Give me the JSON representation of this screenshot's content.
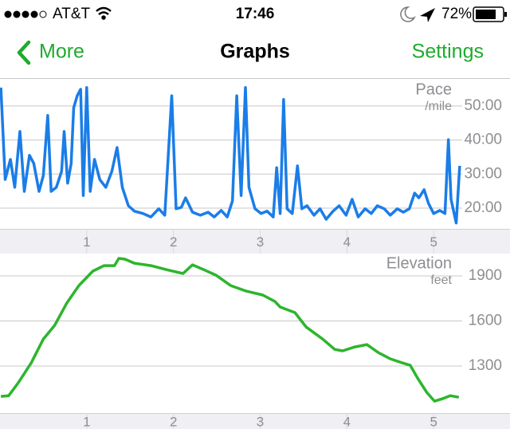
{
  "status_bar": {
    "carrier": "AT&T",
    "time": "17:46",
    "battery": "72%"
  },
  "nav": {
    "back": "More",
    "title": "Graphs",
    "action": "Settings"
  },
  "charts": [
    {
      "type": "line",
      "title": "Pace",
      "unit": "/mile",
      "color": "#1a7de8",
      "x": [
        0.01,
        0.06,
        0.12,
        0.17,
        0.23,
        0.28,
        0.34,
        0.39,
        0.45,
        0.5,
        0.55,
        0.59,
        0.65,
        0.71,
        0.74,
        0.78,
        0.82,
        0.85,
        0.89,
        0.93,
        0.96,
        1.0,
        1.04,
        1.09,
        1.15,
        1.22,
        1.29,
        1.35,
        1.41,
        1.48,
        1.55,
        1.65,
        1.74,
        1.83,
        1.9,
        1.98,
        2.03,
        2.09,
        2.14,
        2.22,
        2.31,
        2.4,
        2.47,
        2.55,
        2.62,
        2.68,
        2.73,
        2.78,
        2.83,
        2.87,
        2.94,
        3.01,
        3.08,
        3.15,
        3.19,
        3.23,
        3.27,
        3.31,
        3.37,
        3.43,
        3.48,
        3.54,
        3.62,
        3.69,
        3.76,
        3.84,
        3.91,
        3.99,
        4.06,
        4.13,
        4.21,
        4.28,
        4.35,
        4.43,
        4.5,
        4.58,
        4.65,
        4.72,
        4.78,
        4.83,
        4.89,
        4.94,
        5.0,
        5.07,
        5.13,
        5.17,
        5.2,
        5.26,
        5.3
      ],
      "values": [
        55.4,
        28.4,
        34.3,
        26.1,
        42.5,
        24.9,
        35.5,
        33.1,
        24.9,
        29.6,
        47.2,
        24.9,
        26.1,
        30.8,
        42.5,
        27.3,
        33.1,
        49.5,
        53.0,
        54.9,
        23.7,
        55.4,
        24.9,
        34.3,
        28.4,
        26.1,
        30.8,
        37.8,
        26.1,
        20.7,
        19.1,
        18.4,
        17.4,
        19.8,
        17.9,
        53.0,
        19.8,
        20.2,
        23.0,
        18.8,
        17.9,
        18.8,
        17.4,
        19.3,
        17.4,
        22.1,
        53.0,
        23.7,
        55.4,
        26.1,
        19.8,
        18.4,
        19.1,
        17.4,
        31.9,
        18.4,
        51.9,
        19.8,
        18.4,
        32.4,
        19.8,
        20.7,
        17.9,
        19.8,
        16.7,
        19.1,
        20.7,
        17.9,
        22.6,
        17.4,
        19.8,
        18.4,
        20.7,
        19.8,
        17.9,
        19.8,
        18.8,
        19.8,
        24.4,
        23.0,
        25.4,
        21.4,
        18.4,
        19.3,
        18.4,
        40.1,
        22.6,
        15.6,
        32.4
      ],
      "xlim": [
        0,
        5.88
      ],
      "ylim": [
        13.9,
        57.7
      ],
      "xticks": [
        1,
        2,
        3,
        4,
        5
      ],
      "yticks": [
        {
          "value": 50,
          "label": "50:00"
        },
        {
          "value": 40,
          "label": "40:00"
        },
        {
          "value": 30,
          "label": "30:00"
        },
        {
          "value": 20,
          "label": "20:00"
        }
      ],
      "grid": true
    },
    {
      "type": "line",
      "title": "Elevation",
      "unit": "feet",
      "color": "#2db52d",
      "x": [
        0.01,
        0.1,
        0.21,
        0.36,
        0.5,
        0.63,
        0.77,
        0.91,
        1.07,
        1.2,
        1.32,
        1.37,
        1.44,
        1.55,
        1.74,
        1.92,
        2.11,
        2.22,
        2.35,
        2.49,
        2.66,
        2.84,
        3.03,
        3.17,
        3.23,
        3.4,
        3.53,
        3.72,
        3.86,
        3.95,
        4.09,
        4.23,
        4.36,
        4.5,
        4.64,
        4.73,
        4.82,
        4.92,
        5.01,
        5.1,
        5.19,
        5.29
      ],
      "values": [
        1098,
        1103,
        1188,
        1321,
        1480,
        1571,
        1719,
        1836,
        1932,
        1969,
        1969,
        2017,
        2012,
        1985,
        1969,
        1942,
        1916,
        1974,
        1942,
        1905,
        1836,
        1799,
        1773,
        1730,
        1693,
        1656,
        1560,
        1480,
        1411,
        1401,
        1427,
        1443,
        1390,
        1348,
        1321,
        1305,
        1215,
        1125,
        1066,
        1082,
        1103,
        1092
      ],
      "xlim": [
        0,
        5.88
      ],
      "ylim": [
        987,
        2049
      ],
      "xticks": [
        1,
        2,
        3,
        4,
        5
      ],
      "yticks": [
        1900,
        1600,
        1300
      ],
      "grid": true
    }
  ]
}
